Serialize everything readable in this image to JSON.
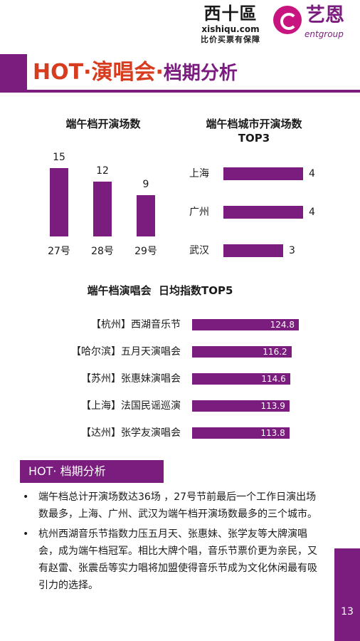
{
  "header": {
    "logo_xishiqu": {
      "name": "西十區",
      "url": "xishiqu.com",
      "slogan": "比价买票有保障"
    },
    "logo_ent": {
      "name": "艺恩",
      "sub": "entgroup"
    },
    "title_main": "HOT·演唱会·",
    "title_sub": "档期分析"
  },
  "chart_data": [
    {
      "type": "bar",
      "title": "端午档开演场数",
      "categories": [
        "27号",
        "28号",
        "29号"
      ],
      "values": [
        15,
        12,
        9
      ],
      "ylim": [
        0,
        15
      ],
      "color": "#7b1c7f",
      "grid": false
    },
    {
      "type": "bar",
      "orientation": "horizontal",
      "title_line1": "端午档城市开演场数",
      "title_line2": "TOP3",
      "categories": [
        "上海",
        "广州",
        "武汉"
      ],
      "values": [
        4,
        4,
        3
      ],
      "xlim": [
        0,
        4
      ],
      "color": "#7b1c7f",
      "grid": false
    },
    {
      "type": "bar",
      "orientation": "horizontal",
      "title": "端午档演唱会  日均指数TOP5",
      "categories": [
        "【杭州】西湖音乐节",
        "【哈尔滨】五月天演唱会",
        "【苏州】张惠妹演唱会",
        "【上海】法国民谣巡演",
        "【达州】张学友演唱会"
      ],
      "values": [
        124.8,
        116.2,
        114.6,
        113.9,
        113.8
      ],
      "xlim": [
        0,
        124.8
      ],
      "color": "#7b1c7f",
      "grid": false
    }
  ],
  "analysis": {
    "heading": "HOT· 档期分析",
    "bullet_char": "•",
    "bullets": [
      "端午档总计开演场数达36场 ，27号节前最后一个工作日演出场数最多，上海、广州、武汉为端午档开演场数最多的三个城市。",
      "杭州西湖音乐节指数力压五月天、张惠妹、张学友等大牌演唱会，成为端午档冠军。相比大牌个唱，音乐节票价更为亲民，又有赵雷、张震岳等实力唱将加盟使得音乐节成为文化休闲最有吸引力的选择。"
    ]
  },
  "page_number": "13",
  "colors": {
    "accent": "#7b1c7f",
    "title_red": "#d73c1f"
  }
}
